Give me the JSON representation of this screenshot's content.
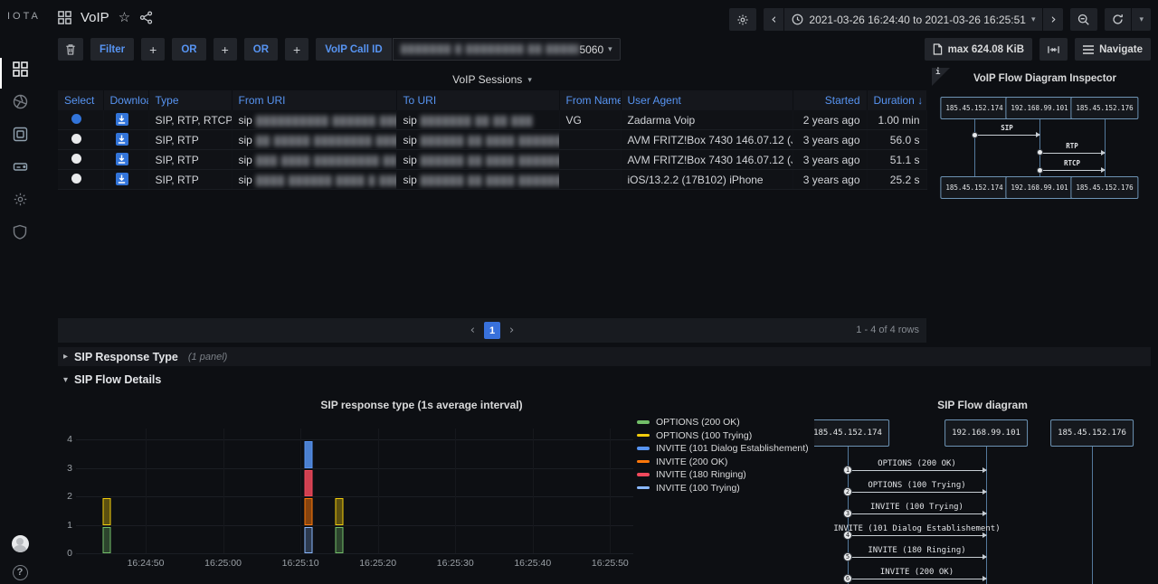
{
  "app": {
    "logo": "IOTA"
  },
  "topnav": {
    "title": "VoIP",
    "time_range": "2021-03-26 16:24:40 to 2021-03-26 16:25:51"
  },
  "toolbar": {
    "filter": "Filter",
    "plus": "+",
    "or": "OR",
    "field_label": "VoIP Call ID",
    "query_redacted": "███████ █ ████████ ██ █████ ████ ███ ██",
    "port": "5060",
    "max_size": "max 624.08 KiB",
    "navigate": "Navigate"
  },
  "sessions": {
    "title": "VoIP Sessions",
    "columns": [
      {
        "label": "Select"
      },
      {
        "label": "Download"
      },
      {
        "label": "Type"
      },
      {
        "label": "From URI"
      },
      {
        "label": "To URI"
      },
      {
        "label": "From Name"
      },
      {
        "label": "User Agent"
      },
      {
        "label": "Started",
        "align": "right"
      },
      {
        "label": "Duration",
        "align": "right",
        "sort_indicator": "↓"
      }
    ],
    "rows": [
      {
        "selected": true,
        "type": "SIP, RTP, RTCP",
        "from_uri_prefix": "sip",
        "from_uri_redacted": "██████████ ██████ ███",
        "to_uri_prefix": "sip",
        "to_uri_redacted": "███████ ██ ██ ███",
        "from_name": "VG",
        "user_agent": "Zadarma Voip",
        "started": "2 years ago",
        "duration": "1.00 min"
      },
      {
        "selected": false,
        "type": "SIP, RTP",
        "from_uri_prefix": "sip",
        "from_uri_redacted": "██ █████ ████████ ████████",
        "to_uri_prefix": "sip",
        "to_uri_redacted": "██████ ██ ████ ████████ ███",
        "from_name": "",
        "user_agent": "AVM FRITZ!Box 7430 146.07.12 (Jul ...",
        "started": "3 years ago",
        "duration": "56.0 s"
      },
      {
        "selected": false,
        "type": "SIP, RTP",
        "from_uri_prefix": "sip",
        "from_uri_redacted": "███ ████ █████████ ██ █████",
        "to_uri_prefix": "sip",
        "to_uri_redacted": "██████ ██ ████ ████████ ███",
        "from_name": "",
        "user_agent": "AVM FRITZ!Box 7430 146.07.12 (Jul ...",
        "started": "3 years ago",
        "duration": "51.1 s"
      },
      {
        "selected": false,
        "type": "SIP, RTP",
        "from_uri_prefix": "sip",
        "from_uri_redacted": "████ ██████ ████ █ ███ ███",
        "to_uri_prefix": "sip",
        "to_uri_redacted": "██████ ██ ████ ████████ ██ █",
        "from_name": "",
        "user_agent": "iOS/13.2.2 (17B102) iPhone",
        "started": "3 years ago",
        "duration": "25.2 s"
      }
    ],
    "pagination": {
      "page": "1",
      "summary": "1 - 4 of 4 rows"
    }
  },
  "inspector": {
    "title": "VoIP Flow Diagram Inspector",
    "corner_label": "i",
    "actors": [
      "185.45.152.174",
      "192.168.99.101",
      "185.45.152.176"
    ],
    "flows": [
      {
        "label": "SIP",
        "from": 0,
        "to": 1
      },
      {
        "label": "RTP",
        "from": 1,
        "to": 2
      },
      {
        "label": "RTCP",
        "from": 1,
        "to": 2
      }
    ]
  },
  "sections": {
    "response_type": {
      "title": "SIP Response Type",
      "panel_count": "(1 panel)"
    },
    "flow_details": {
      "title": "SIP Flow Details"
    }
  },
  "chart_data": {
    "type": "bar",
    "title": "SIP response type (1s average interval)",
    "xlabel": "",
    "ylabel": "",
    "grid": true,
    "legend_position": "right",
    "y_ticks": [
      0,
      1,
      2,
      3,
      4
    ],
    "ylim": [
      0,
      4.4
    ],
    "x_ticks": [
      "16:24:50",
      "16:25:00",
      "16:25:10",
      "16:25:20",
      "16:25:30",
      "16:25:40",
      "16:25:50"
    ],
    "x_range": [
      "16:24:41",
      "16:25:53"
    ],
    "series": [
      {
        "name": "OPTIONS (200 OK)",
        "color": "#73bf69",
        "fill_opacity": 0.3
      },
      {
        "name": "OPTIONS (100 Trying)",
        "color": "#f2cc0c",
        "fill_opacity": 0.35
      },
      {
        "name": "INVITE (101 Dialog Establishement)",
        "color": "#5794f2",
        "fill_opacity": 0.85
      },
      {
        "name": "INVITE (200 OK)",
        "color": "#ff780a",
        "fill_opacity": 0.5
      },
      {
        "name": "INVITE (180 Ringing)",
        "color": "#f2495c",
        "fill_opacity": 0.85
      },
      {
        "name": "INVITE (100 Trying)",
        "color": "#8ab8ff",
        "fill_opacity": 0.25
      }
    ],
    "bars": [
      {
        "time": "16:24:45",
        "stack": [
          {
            "series": "OPTIONS (200 OK)",
            "value": 1
          },
          {
            "series": "OPTIONS (100 Trying)",
            "value": 1
          }
        ]
      },
      {
        "time": "16:25:11",
        "stack": [
          {
            "series": "INVITE (100 Trying)",
            "value": 1
          },
          {
            "series": "INVITE (200 OK)",
            "value": 1
          },
          {
            "series": "INVITE (180 Ringing)",
            "value": 1
          },
          {
            "series": "INVITE (101 Dialog Establishement)",
            "value": 1
          }
        ]
      },
      {
        "time": "16:25:15",
        "stack": [
          {
            "series": "OPTIONS (200 OK)",
            "value": 1
          },
          {
            "series": "OPTIONS (100 Trying)",
            "value": 1
          }
        ]
      }
    ]
  },
  "flow": {
    "title": "SIP Flow diagram",
    "actors": [
      "185.45.152.174",
      "192.168.99.101",
      "185.45.152.176"
    ],
    "messages": [
      {
        "num": "1",
        "label": "OPTIONS (200 OK)",
        "from": 0,
        "to": 1
      },
      {
        "num": "2",
        "label": "OPTIONS (100 Trying)",
        "from": 0,
        "to": 1
      },
      {
        "num": "3",
        "label": "INVITE (100 Trying)",
        "from": 0,
        "to": 1
      },
      {
        "num": "4",
        "label": "INVITE (101 Dialog Establishement)",
        "from": 0,
        "to": 1
      },
      {
        "num": "5",
        "label": "INVITE (180 Ringing)",
        "from": 0,
        "to": 1
      },
      {
        "num": "6",
        "label": "INVITE (200 OK)",
        "from": 0,
        "to": 1
      }
    ]
  }
}
